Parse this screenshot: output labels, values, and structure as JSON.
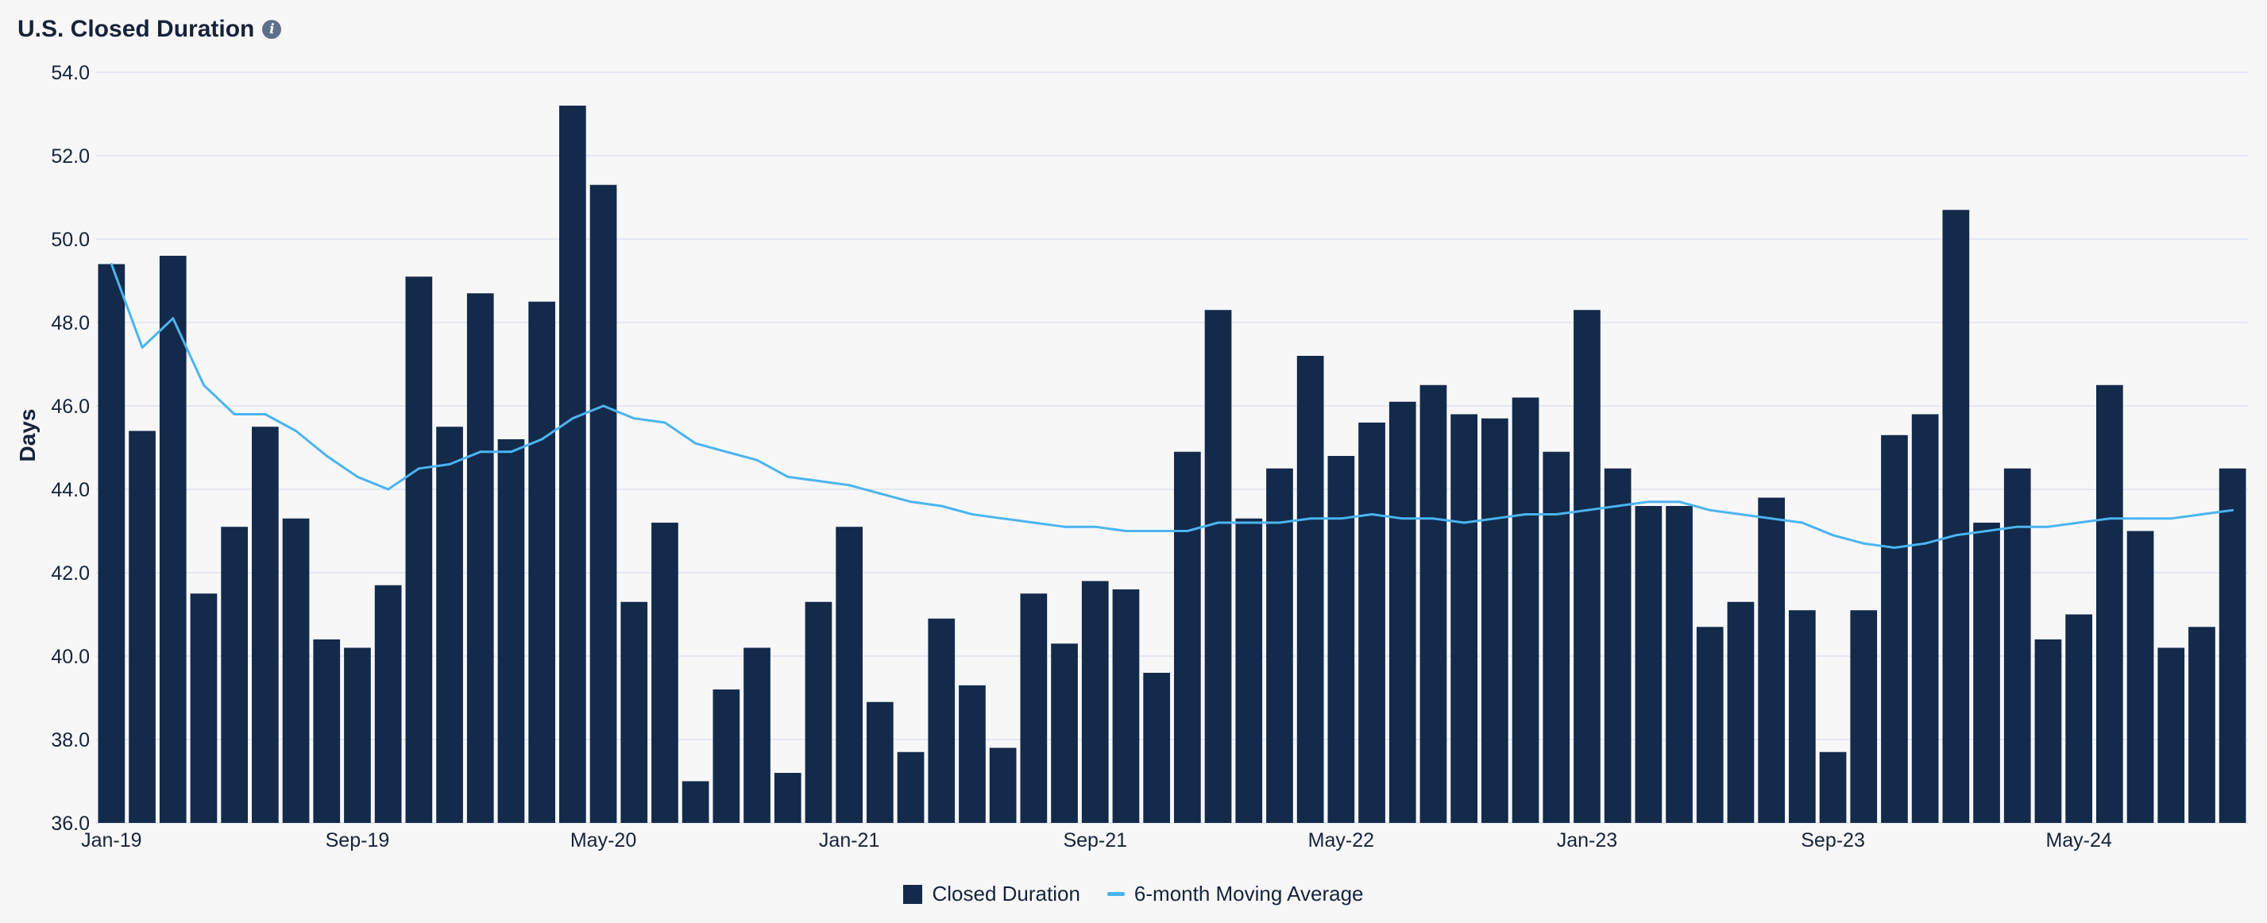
{
  "title": "U.S. Closed Duration",
  "info_icon": "info-icon",
  "colors": {
    "bar": "#132a4b",
    "line": "#4bb4f0",
    "grid": "#dde3ef",
    "text": "#16233a"
  },
  "chart_data": {
    "type": "bar",
    "title": "U.S. Closed Duration",
    "xlabel": "",
    "ylabel": "Days",
    "ylim": [
      36,
      54
    ],
    "yticks": [
      "36.0",
      "38.0",
      "40.0",
      "42.0",
      "44.0",
      "46.0",
      "48.0",
      "50.0",
      "52.0",
      "54.0"
    ],
    "xtick_labels": [
      {
        "index": 0,
        "label": "Jan-19"
      },
      {
        "index": 8,
        "label": "Sep-19"
      },
      {
        "index": 16,
        "label": "May-20"
      },
      {
        "index": 24,
        "label": "Jan-21"
      },
      {
        "index": 32,
        "label": "Sep-21"
      },
      {
        "index": 40,
        "label": "May-22"
      },
      {
        "index": 48,
        "label": "Jan-23"
      },
      {
        "index": 56,
        "label": "Sep-23"
      },
      {
        "index": 64,
        "label": "May-24"
      }
    ],
    "categories": [
      "Jan-19",
      "Feb-19",
      "Mar-19",
      "Apr-19",
      "May-19",
      "Jun-19",
      "Jul-19",
      "Aug-19",
      "Sep-19",
      "Oct-19",
      "Nov-19",
      "Dec-19",
      "Jan-20",
      "Feb-20",
      "Mar-20",
      "Apr-20",
      "May-20",
      "Jun-20",
      "Jul-20",
      "Aug-20",
      "Sep-20",
      "Oct-20",
      "Nov-20",
      "Dec-20",
      "Jan-21",
      "Feb-21",
      "Mar-21",
      "Apr-21",
      "May-21",
      "Jun-21",
      "Jul-21",
      "Aug-21",
      "Sep-21",
      "Oct-21",
      "Nov-21",
      "Dec-21",
      "Jan-22",
      "Feb-22",
      "Mar-22",
      "Apr-22",
      "May-22",
      "Jun-22",
      "Jul-22",
      "Aug-22",
      "Sep-22",
      "Oct-22",
      "Nov-22",
      "Dec-22",
      "Jan-23",
      "Feb-23",
      "Mar-23",
      "Apr-23",
      "May-23",
      "Jun-23",
      "Jul-23",
      "Aug-23",
      "Sep-23",
      "Oct-23",
      "Nov-23",
      "Dec-23",
      "Jan-24",
      "Feb-24",
      "Mar-24",
      "Apr-24",
      "May-24",
      "Jun-24",
      "Jul-24",
      "Aug-24",
      "Sep-24",
      "Oct-24"
    ],
    "series": [
      {
        "name": "Closed Duration",
        "type": "bar",
        "values": [
          49.4,
          45.4,
          49.6,
          41.5,
          43.1,
          45.5,
          43.3,
          40.4,
          40.2,
          41.7,
          49.1,
          45.5,
          48.7,
          45.2,
          48.5,
          53.2,
          51.3,
          41.3,
          43.2,
          37.0,
          39.2,
          40.2,
          37.2,
          41.3,
          43.1,
          38.9,
          37.7,
          40.9,
          39.3,
          37.8,
          41.5,
          40.3,
          41.8,
          41.6,
          39.6,
          44.9,
          48.3,
          43.3,
          44.5,
          47.2,
          44.8,
          45.6,
          46.1,
          46.5,
          45.8,
          45.7,
          46.2,
          44.9,
          48.3,
          44.5,
          43.6,
          43.6,
          40.7,
          41.3,
          43.8,
          41.1,
          37.7,
          41.1,
          45.3,
          45.8,
          50.7,
          43.2,
          44.5,
          40.4,
          41.0,
          46.5,
          43.0,
          40.2,
          40.7,
          44.5
        ]
      },
      {
        "name": "6-month Moving Average",
        "type": "line",
        "values": [
          49.4,
          47.4,
          48.1,
          46.5,
          45.8,
          45.8,
          45.4,
          44.8,
          44.3,
          44.0,
          44.5,
          44.6,
          44.9,
          44.9,
          45.2,
          45.7,
          46.0,
          45.7,
          45.6,
          45.1,
          44.9,
          44.7,
          44.3,
          44.2,
          44.1,
          43.9,
          43.7,
          43.6,
          43.4,
          43.3,
          43.2,
          43.1,
          43.1,
          43.0,
          43.0,
          43.0,
          43.2,
          43.2,
          43.2,
          43.3,
          43.3,
          43.4,
          43.3,
          43.3,
          43.2,
          43.3,
          43.4,
          43.4,
          43.5,
          43.6,
          43.7,
          43.7,
          43.5,
          43.4,
          43.3,
          43.2,
          42.9,
          42.7,
          42.6,
          42.7,
          42.9,
          43.0,
          43.1,
          43.1,
          43.2,
          43.3,
          43.3,
          43.3,
          43.4,
          43.5
        ]
      }
    ],
    "legend": [
      "Closed Duration",
      "6-month Moving Average"
    ],
    "legend_position": "bottom-center",
    "grid": true
  }
}
